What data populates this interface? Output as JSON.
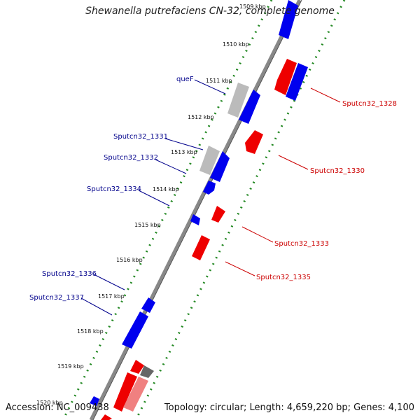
{
  "title": "Shewanella putrefaciens CN-32, complete genome",
  "footer": {
    "accession": "Accession: NC_009438",
    "topology": "Topology: circular; Length: 4,659,220 bp; Genes: 4,100"
  },
  "colors": {
    "forward": "#0000ee",
    "reverse": "#ee0000",
    "rna_gray": "#bbbbbb",
    "tick": "#228822",
    "backbone": "#777777",
    "label_forward": "#00008b",
    "label_reverse": "#cc0000"
  },
  "kbp_ticks": [
    "1509 kbp",
    "1510 kbp",
    "1511 kbp",
    "1512 kbp",
    "1513 kbp",
    "1514 kbp",
    "1515 kbp",
    "1516 kbp",
    "1517 kbp",
    "1518 kbp",
    "1519 kbp",
    "1520 kbp"
  ],
  "labels_left": [
    "queF",
    "Sputcn32_1331",
    "Sputcn32_1332",
    "Sputcn32_1334",
    "Sputcn32_1336",
    "Sputcn32_1337"
  ],
  "labels_right": [
    "Sputcn32_1328",
    "Sputcn32_1330",
    "Sputcn32_1333",
    "Sputcn32_1335"
  ]
}
